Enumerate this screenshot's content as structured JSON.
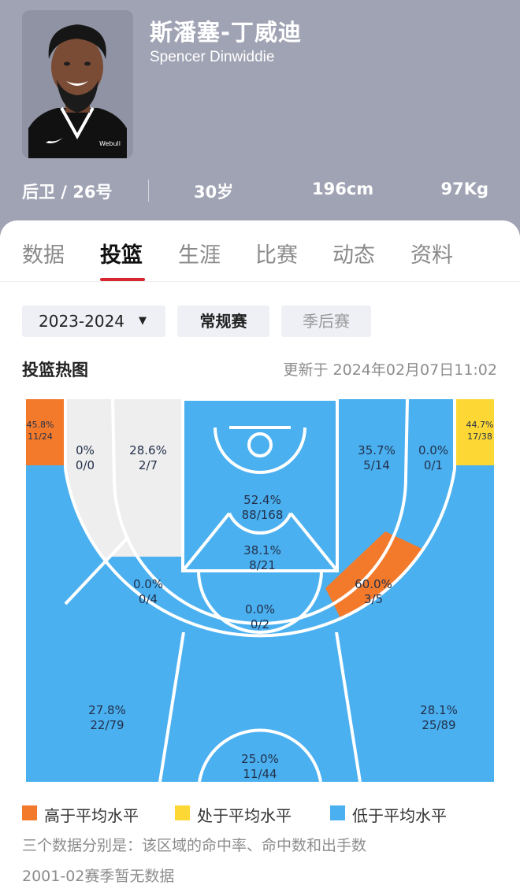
{
  "player": {
    "name_cn": "斯潘塞-丁威迪",
    "name_en": "Spencer Dinwiddie",
    "position_number": "后卫 / 26号",
    "age": "30岁",
    "height": "196cm",
    "weight": "97Kg",
    "jersey_brand": "Webull"
  },
  "tabs": [
    "数据",
    "投篮",
    "生涯",
    "比赛",
    "动态",
    "资料"
  ],
  "active_tab": "投篮",
  "filters": {
    "season": "2023-2024",
    "regular": "常规赛",
    "playoffs": "季后赛"
  },
  "heatmap": {
    "title": "投篮热图",
    "updated": "更新于 2024年02月07日11:02",
    "colors": {
      "above": "#f47a2b",
      "average": "#fdd835",
      "below": "#4ab0f0",
      "no_data": "#eeeeee"
    },
    "zones": [
      {
        "id": "left-corner-three",
        "pct": "45.8%",
        "made": "11/24",
        "level": "above"
      },
      {
        "id": "right-corner-three",
        "pct": "44.7%",
        "made": "17/38",
        "level": "average"
      },
      {
        "id": "left-baseline-mid",
        "pct": "0%",
        "made": "0/0",
        "level": "no_data"
      },
      {
        "id": "left-short-mid",
        "pct": "28.6%",
        "made": "2/7",
        "level": "below"
      },
      {
        "id": "restricted-area",
        "pct": "52.4%",
        "made": "88/168",
        "level": "below"
      },
      {
        "id": "right-short-mid",
        "pct": "35.7%",
        "made": "5/14",
        "level": "below"
      },
      {
        "id": "right-baseline-mid",
        "pct": "0.0%",
        "made": "0/1",
        "level": "below"
      },
      {
        "id": "paint-non-ra",
        "pct": "38.1%",
        "made": "8/21",
        "level": "below"
      },
      {
        "id": "left-elbow-mid",
        "pct": "0.0%",
        "made": "0/4",
        "level": "below"
      },
      {
        "id": "right-elbow-mid",
        "pct": "60.0%",
        "made": "3/5",
        "level": "above"
      },
      {
        "id": "top-key-mid",
        "pct": "0.0%",
        "made": "0/2",
        "level": "below"
      },
      {
        "id": "left-wing-three",
        "pct": "27.8%",
        "made": "22/79",
        "level": "below"
      },
      {
        "id": "right-wing-three",
        "pct": "28.1%",
        "made": "25/89",
        "level": "below"
      },
      {
        "id": "top-of-key-three",
        "pct": "25.0%",
        "made": "11/44",
        "level": "below"
      }
    ]
  },
  "legend": {
    "above": "高于平均水平",
    "average": "处于平均水平",
    "below": "低于平均水平"
  },
  "notes": {
    "explain": "三个数据分别是：该区域的命中率、命中数和出手数",
    "no_data": "2001-02赛季暂无数据"
  }
}
